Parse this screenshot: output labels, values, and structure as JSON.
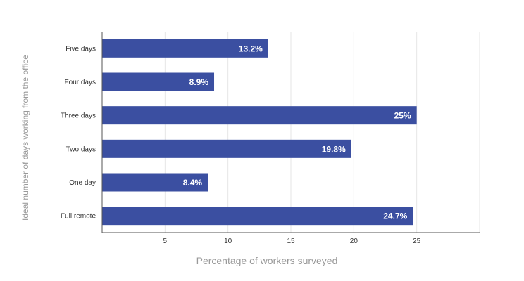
{
  "chart_data": {
    "type": "bar",
    "orientation": "horizontal",
    "categories": [
      "Five days",
      "Four days",
      "Three days",
      "Two days",
      "One day",
      "Full remote"
    ],
    "values": [
      13.2,
      8.9,
      25,
      19.8,
      8.4,
      24.7
    ],
    "data_labels": [
      "13.2%",
      "8.9%",
      "25%",
      "19.8%",
      "8.4%",
      "24.7%"
    ],
    "xlabel": "Percentage of workers surveyed",
    "ylabel": "Ideal number of days working from the office",
    "xlim": [
      0,
      30
    ],
    "xticks": [
      5,
      10,
      15,
      20,
      25
    ],
    "grid": true,
    "bar_color": "#3b4fa1",
    "gridline_color": "#e6e6e6",
    "axis_color": "#555555"
  }
}
